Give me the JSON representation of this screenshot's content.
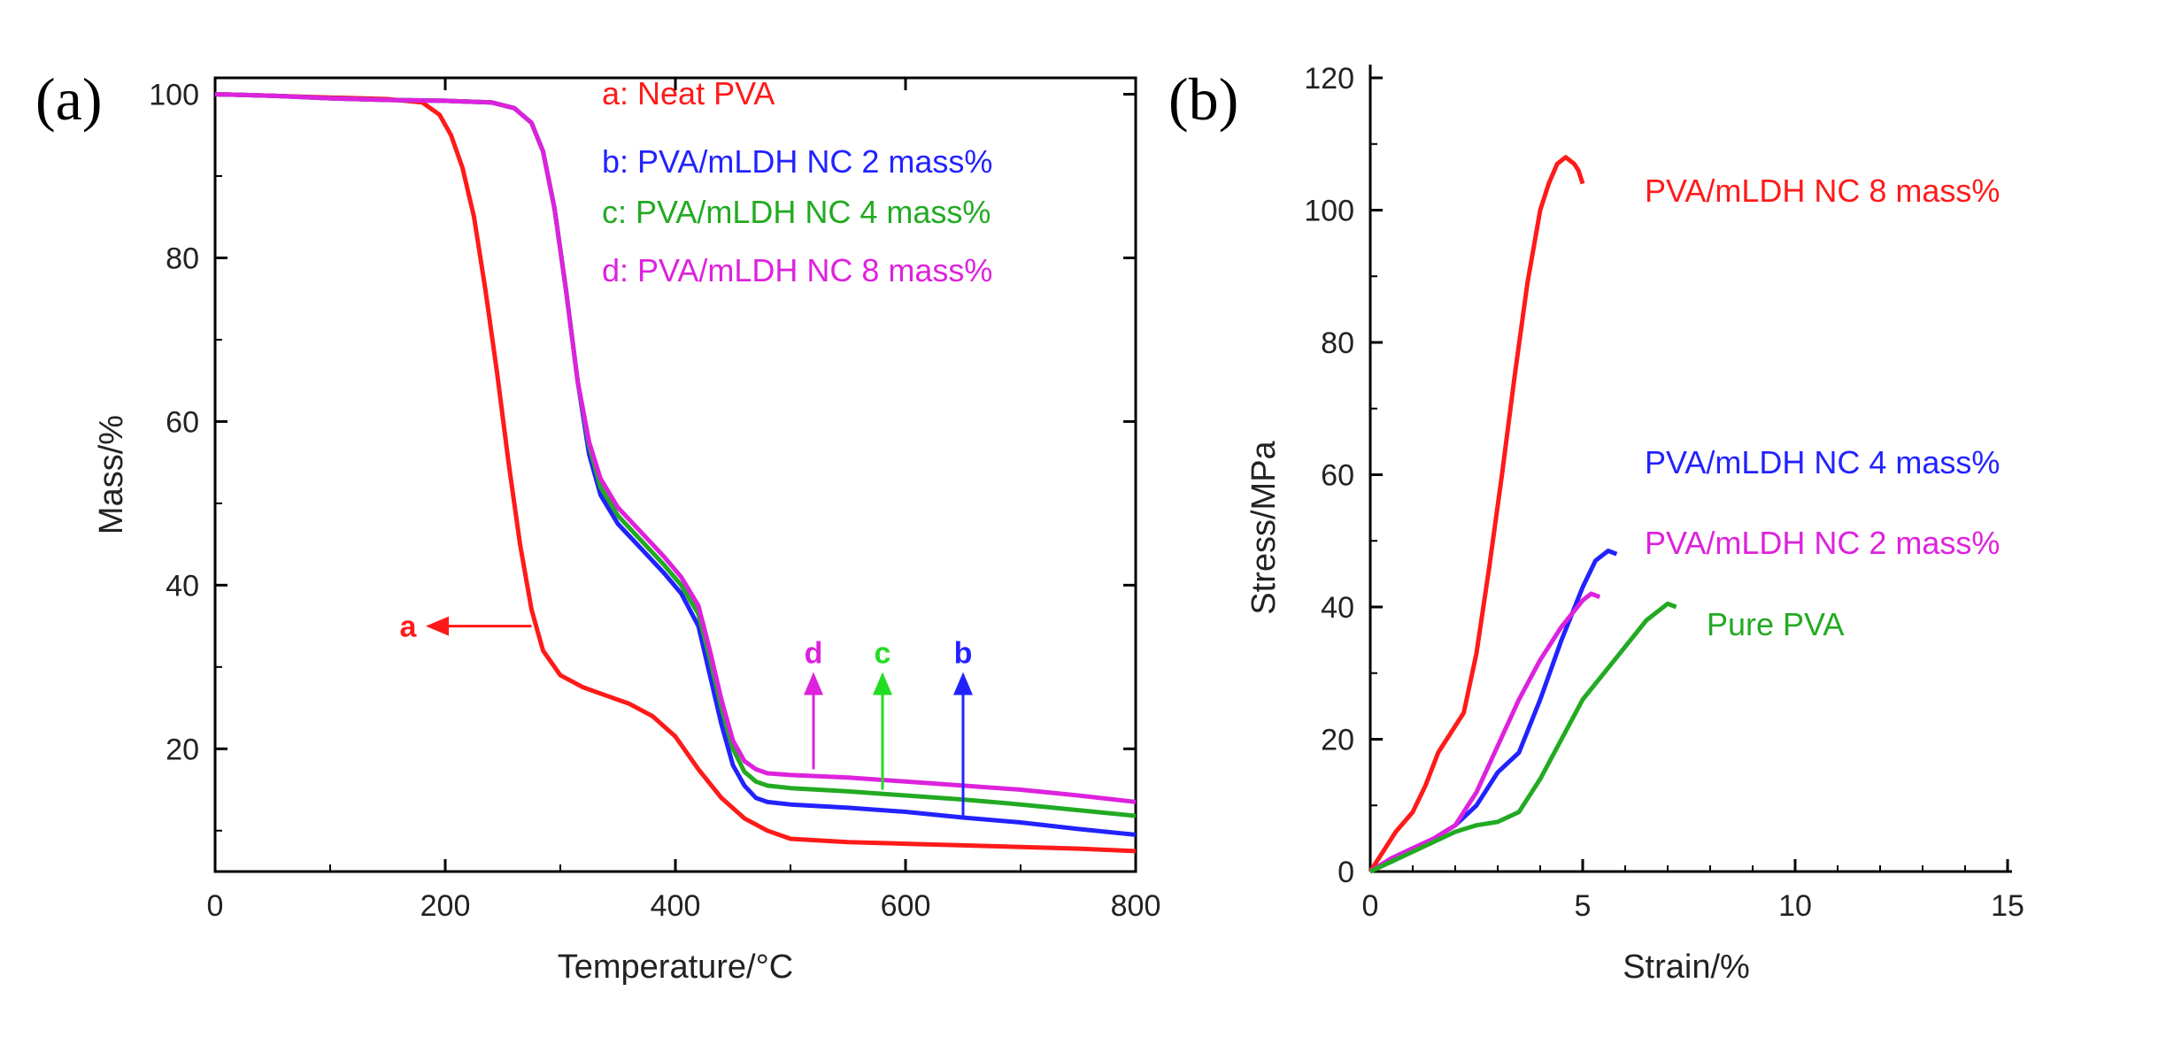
{
  "figure": {
    "panel_a_label": "(a)",
    "panel_b_label": "(b)"
  },
  "chart_data": [
    {
      "type": "line",
      "panel": "(a)",
      "title": "",
      "xlabel": "Temperature/°C",
      "ylabel": "Mass/%",
      "xlim": [
        0,
        800
      ],
      "ylim": [
        5,
        102
      ],
      "x_ticks": [
        0,
        200,
        400,
        600,
        800
      ],
      "y_ticks": [
        20,
        40,
        60,
        80,
        100
      ],
      "grid": false,
      "legend_placement": "top-right",
      "series": [
        {
          "name": "a: Neat PVA",
          "color": "#ff1a1a",
          "x": [
            0,
            50,
            100,
            150,
            180,
            195,
            205,
            215,
            225,
            235,
            245,
            255,
            265,
            275,
            285,
            300,
            320,
            340,
            360,
            380,
            400,
            420,
            440,
            460,
            480,
            500,
            550,
            600,
            650,
            700,
            750,
            800
          ],
          "y": [
            100,
            99.8,
            99.6,
            99.4,
            99,
            97.5,
            95,
            91,
            85,
            76,
            66,
            55,
            45,
            37,
            32,
            29,
            27.5,
            26.5,
            25.5,
            24,
            21.5,
            17.5,
            14,
            11.5,
            10,
            9,
            8.6,
            8.4,
            8.2,
            8,
            7.8,
            7.5
          ]
        },
        {
          "name": "b: PVA/mLDH NC 2 mass%",
          "color": "#2222ff",
          "x": [
            0,
            50,
            100,
            150,
            200,
            240,
            260,
            275,
            285,
            295,
            305,
            315,
            325,
            335,
            350,
            370,
            390,
            405,
            420,
            430,
            440,
            450,
            460,
            470,
            480,
            500,
            550,
            600,
            650,
            700,
            750,
            800
          ],
          "y": [
            100,
            99.8,
            99.5,
            99.3,
            99.2,
            99,
            98.3,
            96.5,
            93,
            86,
            76,
            65,
            56,
            51,
            47.5,
            44.5,
            41.5,
            39,
            35,
            29,
            23,
            18,
            15.5,
            14,
            13.5,
            13.2,
            12.8,
            12.3,
            11.6,
            11,
            10.2,
            9.5
          ]
        },
        {
          "name": "c: PVA/mLDH NC 4 mass%",
          "color": "#22aa22",
          "x": [
            0,
            50,
            100,
            150,
            200,
            240,
            260,
            275,
            285,
            295,
            305,
            315,
            325,
            335,
            350,
            370,
            390,
            405,
            420,
            430,
            440,
            450,
            460,
            470,
            480,
            500,
            550,
            600,
            650,
            700,
            750,
            800
          ],
          "y": [
            100,
            99.8,
            99.5,
            99.3,
            99.2,
            99,
            98.3,
            96.5,
            93,
            86,
            76,
            65,
            57,
            52,
            48.5,
            45.5,
            42.5,
            40,
            36.5,
            31,
            25,
            20,
            17.2,
            16,
            15.5,
            15.2,
            14.8,
            14.3,
            13.8,
            13.2,
            12.5,
            11.8
          ]
        },
        {
          "name": "d: PVA/mLDH NC 8 mass%",
          "color": "#dd22dd",
          "x": [
            0,
            50,
            100,
            150,
            200,
            240,
            260,
            275,
            285,
            295,
            305,
            315,
            325,
            335,
            350,
            370,
            390,
            405,
            420,
            430,
            440,
            450,
            460,
            470,
            480,
            500,
            550,
            600,
            650,
            700,
            750,
            800
          ],
          "y": [
            100,
            99.8,
            99.5,
            99.3,
            99.2,
            99,
            98.3,
            96.5,
            93,
            86,
            76,
            65,
            57.5,
            53,
            49.5,
            46.5,
            43.5,
            41,
            37.5,
            32,
            26,
            21,
            18.5,
            17.5,
            17,
            16.8,
            16.5,
            16,
            15.5,
            15,
            14.3,
            13.5
          ]
        }
      ],
      "annotations": [
        {
          "label": "a",
          "color": "#ff1a1a",
          "direction": "left",
          "at": [
            275,
            35
          ],
          "tail": [
            200,
            35
          ]
        },
        {
          "label": "d",
          "color": "#dd22dd",
          "direction": "up",
          "at": [
            520,
            27
          ],
          "tail": [
            520,
            17.5
          ]
        },
        {
          "label": "c",
          "color": "#22dd22",
          "direction": "up",
          "at": [
            580,
            27
          ],
          "tail": [
            580,
            15
          ]
        },
        {
          "label": "b",
          "color": "#2222ff",
          "direction": "up",
          "at": [
            650,
            27
          ],
          "tail": [
            650,
            11.5
          ]
        }
      ]
    },
    {
      "type": "line",
      "panel": "(b)",
      "title": "",
      "xlabel": "Strain/%",
      "ylabel": "Stress/MPa",
      "xlim": [
        0,
        15
      ],
      "ylim": [
        0,
        120
      ],
      "x_ticks": [
        0,
        5,
        10,
        15
      ],
      "y_ticks": [
        0,
        20,
        40,
        60,
        80,
        100,
        120
      ],
      "grid": false,
      "legend_placement": "right",
      "series": [
        {
          "name": "PVA/mLDH NC 8 mass%",
          "color": "#ff1a1a",
          "x": [
            0,
            0.3,
            0.6,
            1.0,
            1.3,
            1.6,
            1.9,
            2.2,
            2.5,
            2.8,
            3.1,
            3.4,
            3.7,
            4.0,
            4.2,
            4.4,
            4.6,
            4.8,
            4.9,
            5.0
          ],
          "y": [
            0,
            3,
            6,
            9,
            13,
            18,
            21,
            24,
            33,
            46,
            60,
            75,
            89,
            100,
            104,
            107,
            108,
            107,
            106,
            104
          ]
        },
        {
          "name": "PVA/mLDH NC 4 mass%",
          "color": "#2222ff",
          "x": [
            0,
            0.5,
            1.0,
            1.5,
            2.0,
            2.5,
            3.0,
            3.5,
            4.0,
            4.5,
            5.0,
            5.3,
            5.6,
            5.8
          ],
          "y": [
            0,
            2,
            3.5,
            5,
            7,
            10,
            15,
            18,
            26,
            35,
            43,
            47,
            48.5,
            48
          ]
        },
        {
          "name": "PVA/mLDH NC 2 mass%",
          "color": "#dd22dd",
          "x": [
            0,
            0.5,
            1.0,
            1.5,
            2.0,
            2.5,
            3.0,
            3.5,
            4.0,
            4.5,
            5.0,
            5.2,
            5.4
          ],
          "y": [
            0,
            2,
            3.5,
            5,
            7,
            12,
            19,
            26,
            32,
            37,
            41,
            42,
            41.5
          ]
        },
        {
          "name": "Pure PVA",
          "color": "#22aa22",
          "x": [
            0,
            0.5,
            1.0,
            1.5,
            2.0,
            2.5,
            3.0,
            3.5,
            4.0,
            4.5,
            5.0,
            5.5,
            6.0,
            6.5,
            7.0,
            7.2
          ],
          "y": [
            0,
            1.5,
            3,
            4.5,
            6,
            7,
            7.5,
            9,
            14,
            20,
            26,
            30,
            34,
            38,
            40.5,
            40
          ]
        }
      ],
      "labels": [
        {
          "text": "PVA/mLDH NC 8 mass%",
          "color": "#ff1a1a"
        },
        {
          "text": "PVA/mLDH NC 4 mass%",
          "color": "#2222ff"
        },
        {
          "text": "PVA/mLDH NC 2 mass%",
          "color": "#dd22dd"
        },
        {
          "text": "Pure PVA",
          "color": "#22aa22"
        }
      ]
    }
  ]
}
